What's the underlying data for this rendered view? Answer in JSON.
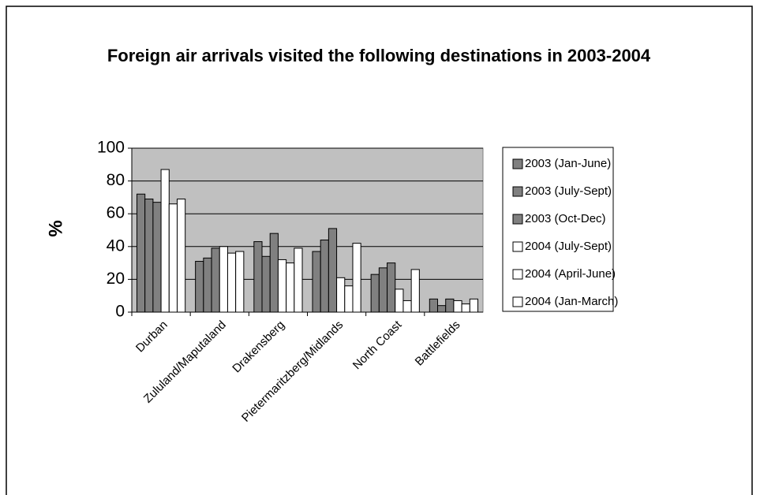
{
  "chart_data": {
    "type": "bar",
    "title": "Foreign air arrivals visited the following destinations in 2003-2004",
    "y_label": "%",
    "categories": [
      "Durban",
      "Zululand/Maputaland",
      "Drakensberg",
      "Pietermaritzberg/Midlands",
      "North Coast",
      "Battlefields"
    ],
    "series": [
      {
        "name": "2003 (Jan-June)",
        "color": "#808080",
        "values": [
          72,
          31,
          43,
          37,
          23,
          8
        ]
      },
      {
        "name": "2003 (July-Sept)",
        "color": "#808080",
        "values": [
          69,
          33,
          34,
          44,
          27,
          4
        ]
      },
      {
        "name": "2003 (Oct-Dec)",
        "color": "#808080",
        "values": [
          67,
          39,
          48,
          51,
          30,
          8
        ]
      },
      {
        "name": "2004 (July-Sept)",
        "color": "#ffffff",
        "values": [
          87,
          40,
          32,
          21,
          14,
          7
        ]
      },
      {
        "name": "2004 (April-June)",
        "color": "#ffffff",
        "values": [
          66,
          36,
          30,
          16,
          7,
          5
        ]
      },
      {
        "name": "2004 (Jan-March)",
        "color": "#ffffff",
        "values": [
          69,
          37,
          39,
          42,
          26,
          8
        ]
      }
    ],
    "ylim": [
      0,
      100
    ],
    "yticks": [
      0,
      20,
      40,
      60,
      80,
      100
    ],
    "grid": true,
    "legend": "right"
  }
}
